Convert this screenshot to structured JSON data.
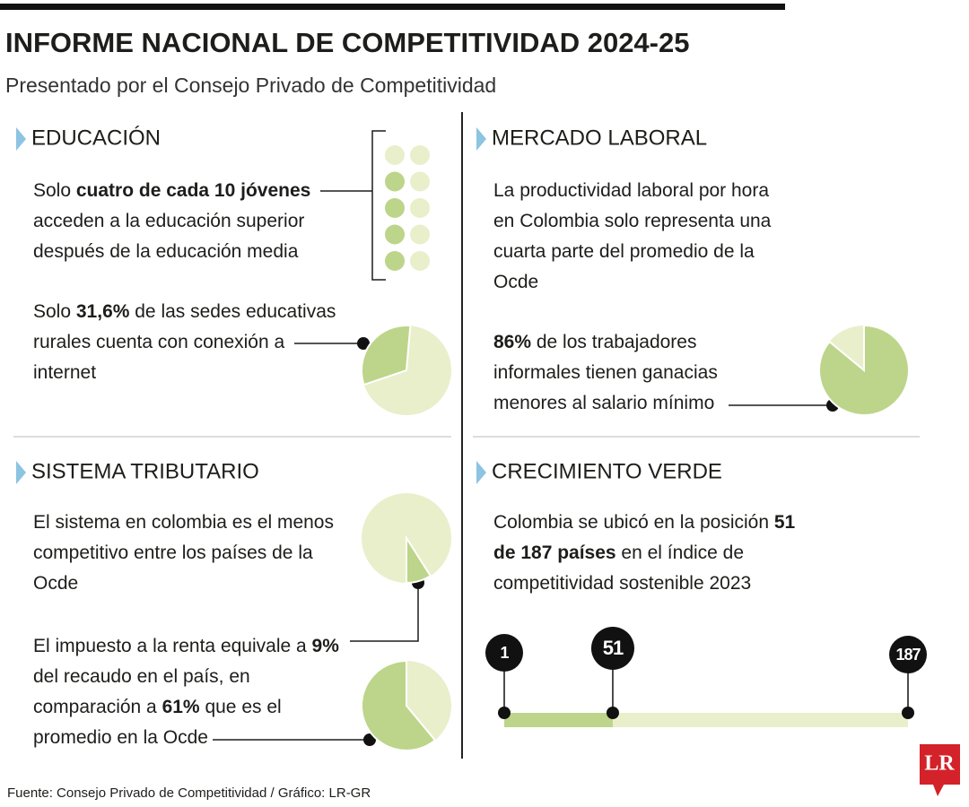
{
  "header": {
    "title": "INFORME NACIONAL DE COMPETITIVIDAD 2024-25",
    "subtitle": "Presentado por el Consejo Privado de Competitividad"
  },
  "colors": {
    "highlight": "#bcd58a",
    "base": "#e9efcb",
    "accent": "#8cc4e2"
  },
  "sections": [
    {
      "heading": "EDUCACIÓN",
      "items": [
        {
          "lines": [
            [
              "Solo ",
              {
                "bold": "cuatro de cada 10 jóvenes"
              }
            ],
            [
              "acceden a la educación superior"
            ],
            [
              "después de la educación media"
            ]
          ],
          "graphics": [
            {
              "type": "dots",
              "value": 4,
              "total": 10
            }
          ]
        },
        {
          "lines": [
            [
              "Solo ",
              {
                "bold": "31,6%"
              },
              " de las sedes educativas"
            ],
            [
              "rurales cuenta con conexión a"
            ],
            [
              "internet"
            ]
          ],
          "graphics": [
            {
              "type": "pie",
              "value": 31.6
            }
          ]
        }
      ]
    },
    {
      "heading": "MERCADO LABORAL",
      "items": [
        {
          "lines": [
            [
              "La productividad laboral por hora"
            ],
            [
              "en Colombia solo representa una"
            ],
            [
              "cuarta parte del promedio de la"
            ],
            [
              "Ocde"
            ]
          ]
        },
        {
          "lines": [
            [
              {
                "bold": "86%"
              },
              " de los trabajadores"
            ],
            [
              "informales tienen ganacias"
            ],
            [
              "menores al salario mínimo"
            ]
          ],
          "graphics": [
            {
              "type": "pie",
              "value": 86
            }
          ]
        }
      ]
    },
    {
      "heading": "SISTEMA TRIBUTARIO",
      "items": [
        {
          "lines": [
            [
              "El sistema en colombia es el menos"
            ],
            [
              "competitivo entre los países de la"
            ],
            [
              "Ocde"
            ]
          ]
        },
        {
          "lines": [
            [
              "El impuesto a la renta equivale a ",
              {
                "bold": "9%"
              }
            ],
            [
              "del recaudo en el país, en"
            ],
            [
              "comparación a ",
              {
                "bold": "61%"
              },
              " que es el"
            ],
            [
              "promedio en la Ocde"
            ]
          ],
          "graphics": [
            {
              "type": "pie",
              "value": 9
            },
            {
              "type": "pie",
              "value": 61
            }
          ]
        }
      ]
    },
    {
      "heading": "CRECIMIENTO VERDE",
      "items": [
        {
          "lines": [
            [
              "Colombia se ubicó en la posición ",
              {
                "bold": "51"
              }
            ],
            [
              {
                "bold": "de 187 países"
              },
              " en el índice de"
            ],
            [
              "competitividad sostenible 2023"
            ]
          ],
          "graphics": [
            {
              "type": "ranking",
              "first": 1,
              "position": 51,
              "last": 187
            }
          ]
        }
      ]
    }
  ],
  "footer": {
    "source": "Fuente:  Consejo Privado de Competitividad / Gráfico: LR-GR",
    "logo": "LR"
  }
}
